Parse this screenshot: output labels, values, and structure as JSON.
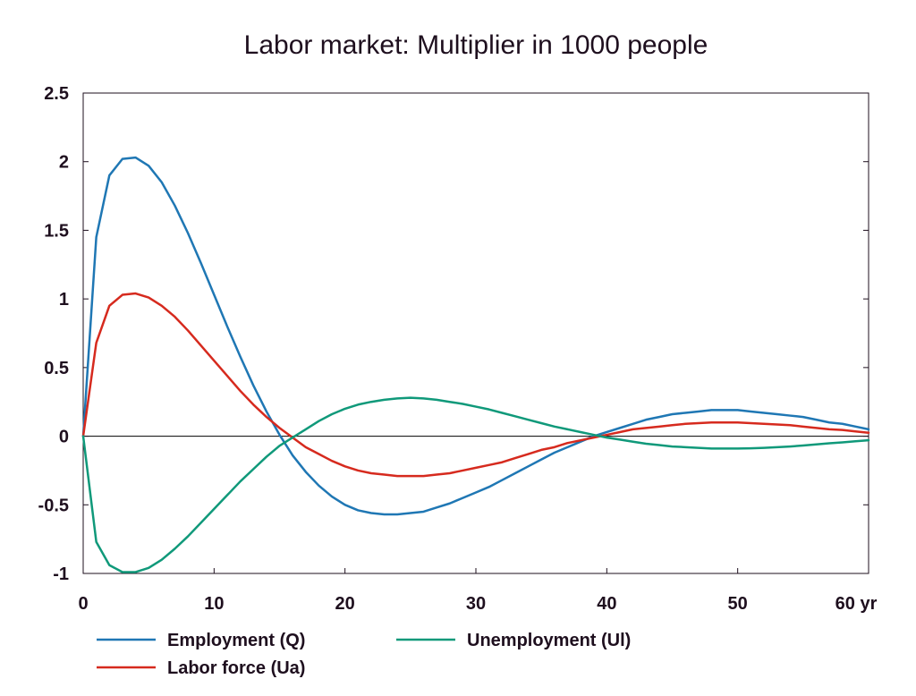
{
  "chart_data": {
    "type": "line",
    "title": "Labor market: Multiplier in 1000 people",
    "xlabel": "",
    "ylabel": "",
    "xlim": [
      0,
      60
    ],
    "ylim": [
      -1,
      2.5
    ],
    "x_ticks": [
      0,
      10,
      20,
      30,
      40,
      50,
      60
    ],
    "x_tick_labels": [
      "0",
      "10",
      "20",
      "30",
      "40",
      "50",
      "60 yr"
    ],
    "y_ticks": [
      -1,
      -0.5,
      0,
      0.5,
      1,
      1.5,
      2,
      2.5
    ],
    "y_tick_labels": [
      "-1",
      "-0.5",
      "0",
      "0.5",
      "1",
      "1.5",
      "2",
      "2.5"
    ],
    "grid": false,
    "legend_placement": "bottom",
    "x": [
      0,
      1,
      2,
      3,
      4,
      5,
      6,
      7,
      8,
      9,
      10,
      11,
      12,
      13,
      14,
      15,
      16,
      17,
      18,
      19,
      20,
      21,
      22,
      23,
      24,
      25,
      26,
      27,
      28,
      29,
      30,
      31,
      32,
      33,
      34,
      35,
      36,
      37,
      38,
      39,
      40,
      41,
      42,
      43,
      44,
      45,
      46,
      47,
      48,
      49,
      50,
      51,
      52,
      53,
      54,
      55,
      56,
      57,
      58,
      59,
      60
    ],
    "series": [
      {
        "name": "Employment (Q)",
        "color": "#1f77b4",
        "values": [
          0,
          1.45,
          1.9,
          2.02,
          2.03,
          1.97,
          1.85,
          1.68,
          1.48,
          1.26,
          1.03,
          0.8,
          0.58,
          0.37,
          0.18,
          0.01,
          -0.14,
          -0.26,
          -0.36,
          -0.44,
          -0.5,
          -0.54,
          -0.56,
          -0.57,
          -0.57,
          -0.56,
          -0.55,
          -0.52,
          -0.49,
          -0.45,
          -0.41,
          -0.37,
          -0.32,
          -0.27,
          -0.22,
          -0.17,
          -0.12,
          -0.08,
          -0.04,
          0.0,
          0.03,
          0.06,
          0.09,
          0.12,
          0.14,
          0.16,
          0.17,
          0.18,
          0.19,
          0.19,
          0.19,
          0.18,
          0.17,
          0.16,
          0.15,
          0.14,
          0.12,
          0.1,
          0.09,
          0.07,
          0.05
        ]
      },
      {
        "name": "Labor force (Ua)",
        "color": "#d62a1e",
        "values": [
          0,
          0.68,
          0.95,
          1.03,
          1.04,
          1.01,
          0.95,
          0.87,
          0.77,
          0.66,
          0.55,
          0.44,
          0.33,
          0.23,
          0.14,
          0.06,
          -0.01,
          -0.08,
          -0.13,
          -0.18,
          -0.22,
          -0.25,
          -0.27,
          -0.28,
          -0.29,
          -0.29,
          -0.29,
          -0.28,
          -0.27,
          -0.25,
          -0.23,
          -0.21,
          -0.19,
          -0.16,
          -0.13,
          -0.1,
          -0.08,
          -0.05,
          -0.03,
          -0.01,
          0.01,
          0.03,
          0.05,
          0.06,
          0.07,
          0.08,
          0.09,
          0.095,
          0.1,
          0.1,
          0.1,
          0.095,
          0.09,
          0.085,
          0.08,
          0.07,
          0.06,
          0.05,
          0.045,
          0.035,
          0.025
        ]
      },
      {
        "name": "Unemployment (Ul)",
        "color": "#10997a",
        "values": [
          0,
          -0.77,
          -0.94,
          -0.99,
          -0.99,
          -0.96,
          -0.9,
          -0.82,
          -0.73,
          -0.63,
          -0.53,
          -0.43,
          -0.33,
          -0.24,
          -0.15,
          -0.07,
          -0.01,
          0.05,
          0.11,
          0.16,
          0.2,
          0.23,
          0.25,
          0.265,
          0.275,
          0.28,
          0.275,
          0.265,
          0.25,
          0.235,
          0.215,
          0.195,
          0.17,
          0.145,
          0.12,
          0.095,
          0.07,
          0.05,
          0.03,
          0.01,
          -0.01,
          -0.025,
          -0.04,
          -0.055,
          -0.065,
          -0.075,
          -0.08,
          -0.085,
          -0.09,
          -0.09,
          -0.09,
          -0.088,
          -0.085,
          -0.08,
          -0.075,
          -0.068,
          -0.06,
          -0.052,
          -0.045,
          -0.037,
          -0.03
        ]
      }
    ]
  },
  "legend": {
    "items": [
      {
        "label": "Employment (Q)",
        "color": "#1f77b4"
      },
      {
        "label": "Unemployment (Ul)",
        "color": "#10997a"
      },
      {
        "label": "Labor force (Ua)",
        "color": "#d62a1e"
      }
    ]
  }
}
